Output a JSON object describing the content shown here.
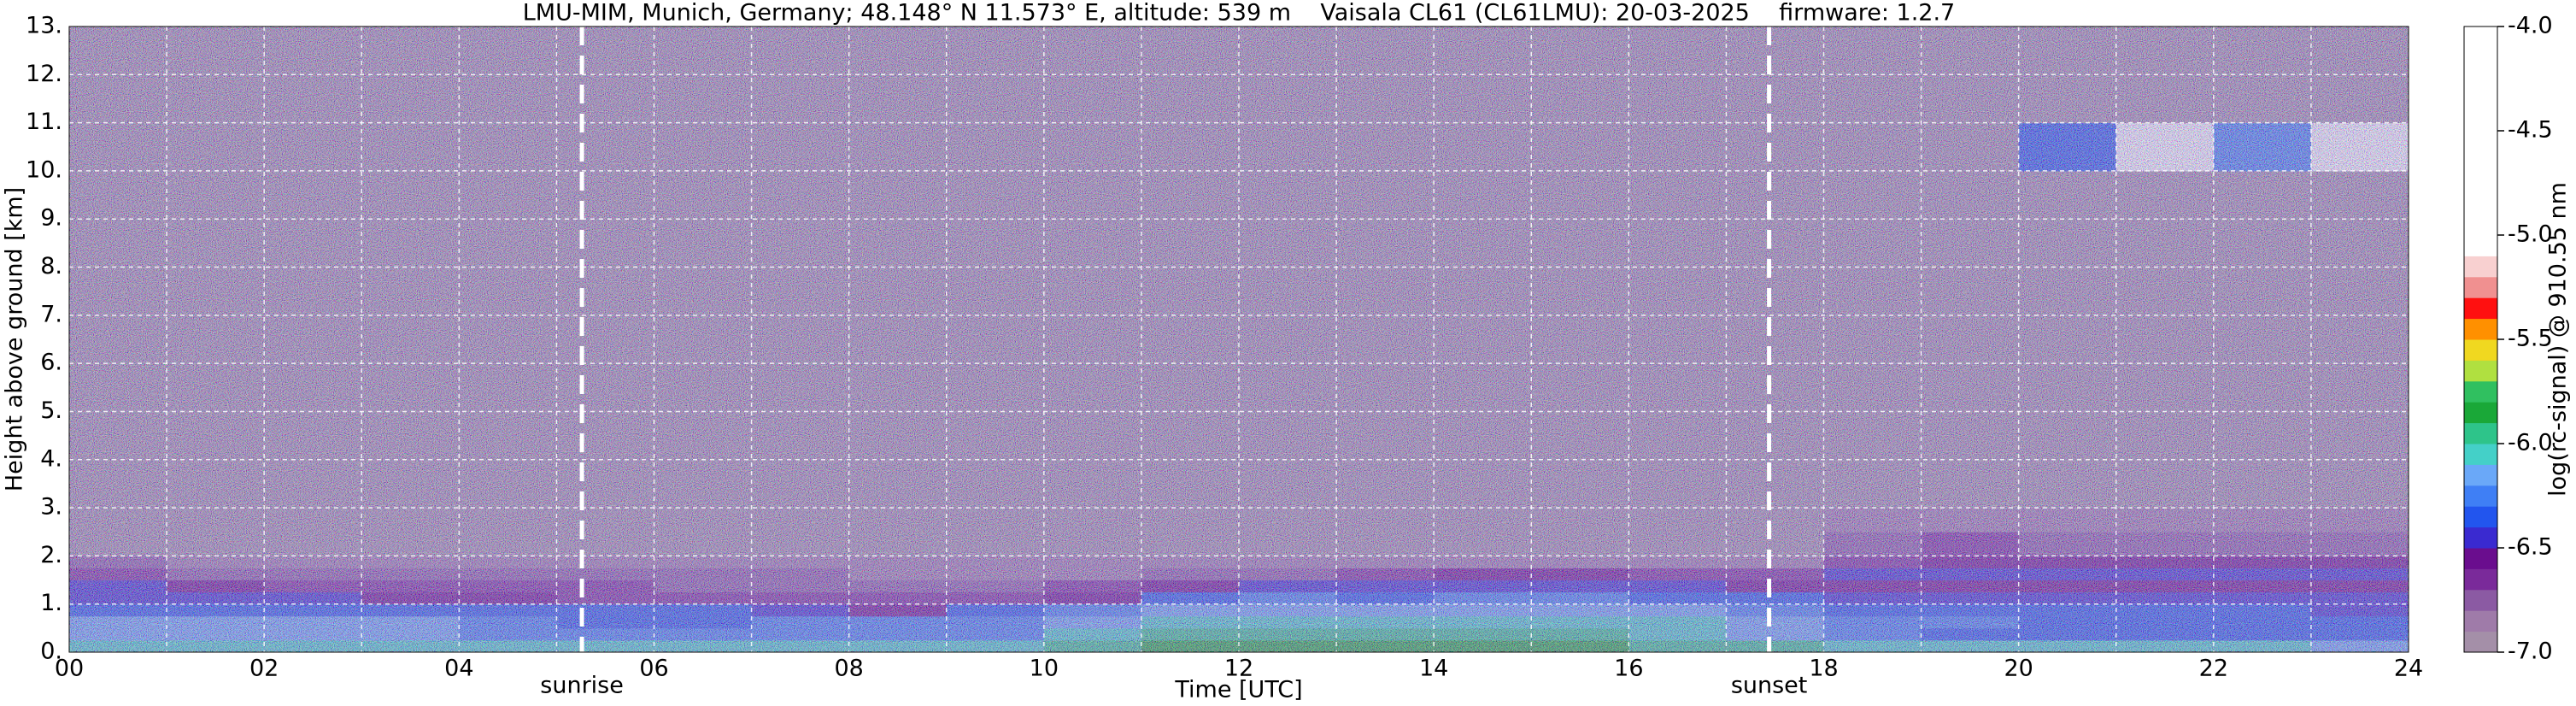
{
  "chart_data": {
    "type": "heatmap",
    "title": "LMU-MIM, Munich, Germany; 48.148° N 11.573° E, altitude: 539 m    Vaisala CL61 (CL61LMU): 20-03-2025    firmware: 1.2.7",
    "xlabel": "Time [UTC]",
    "ylabel": "Height above ground [km]",
    "colorbar_label": "log(rc-signal) @ 910.55 nm",
    "xlim": [
      0,
      24
    ],
    "ylim": [
      0,
      13
    ],
    "xticks": [
      {
        "value": 0,
        "label": "00"
      },
      {
        "value": 2,
        "label": "02"
      },
      {
        "value": 4,
        "label": "04"
      },
      {
        "value": 6,
        "label": "06"
      },
      {
        "value": 8,
        "label": "08"
      },
      {
        "value": 10,
        "label": "10"
      },
      {
        "value": 12,
        "label": "12"
      },
      {
        "value": 14,
        "label": "14"
      },
      {
        "value": 16,
        "label": "16"
      },
      {
        "value": 18,
        "label": "18"
      },
      {
        "value": 20,
        "label": "20"
      },
      {
        "value": 22,
        "label": "22"
      },
      {
        "value": 24,
        "label": "24"
      }
    ],
    "xminorticks": [
      1,
      3,
      5,
      7,
      9,
      11,
      13,
      15,
      17,
      19,
      21,
      23
    ],
    "yticks": [
      {
        "value": 0,
        "label": "0."
      },
      {
        "value": 1,
        "label": "1."
      },
      {
        "value": 2,
        "label": "2."
      },
      {
        "value": 3,
        "label": "3."
      },
      {
        "value": 4,
        "label": "4."
      },
      {
        "value": 5,
        "label": "5."
      },
      {
        "value": 6,
        "label": "6."
      },
      {
        "value": 7,
        "label": "7."
      },
      {
        "value": 8,
        "label": "8."
      },
      {
        "value": 9,
        "label": "9."
      },
      {
        "value": 10,
        "label": "10."
      },
      {
        "value": 11,
        "label": "11."
      },
      {
        "value": 12,
        "label": "12."
      },
      {
        "value": 13,
        "label": "13."
      }
    ],
    "grid": true,
    "annotations": [
      {
        "text": "sunrise",
        "x": 5.26
      },
      {
        "text": "sunset",
        "x": 17.44
      }
    ],
    "clim": [
      -7,
      -4
    ],
    "cticks": [
      {
        "value": -4,
        "label": "-4.0"
      },
      -4.5,
      {
        "value": -5,
        "label": "-5.0"
      },
      -5.5,
      {
        "value": -6,
        "label": "-6.0"
      },
      -6.5,
      {
        "value": -7,
        "label": "-7.0"
      }
    ],
    "colorscale": [
      {
        "value": -7,
        "color": "#a48fa8"
      },
      {
        "value": -6.9,
        "color": "#9f7ba9"
      },
      {
        "value": -6.8,
        "color": "#8b5aa3"
      },
      {
        "value": -6.7,
        "color": "#7a2a9a"
      },
      {
        "value": -6.6,
        "color": "#6a0d8e"
      },
      {
        "value": -6.5,
        "color": "#3a2ad0"
      },
      {
        "value": -6.4,
        "color": "#2255ee"
      },
      {
        "value": -6.3,
        "color": "#3f7ff5"
      },
      {
        "value": -6.2,
        "color": "#6aa8f8"
      },
      {
        "value": -6.1,
        "color": "#44d0c8"
      },
      {
        "value": -6.0,
        "color": "#2ec48a"
      },
      {
        "value": -5.9,
        "color": "#1aa838"
      },
      {
        "value": -5.8,
        "color": "#30c060"
      },
      {
        "value": -5.7,
        "color": "#b0e040"
      },
      {
        "value": -5.6,
        "color": "#f0d820"
      },
      {
        "value": -5.5,
        "color": "#ff9000"
      },
      {
        "value": -5.4,
        "color": "#ff1010"
      },
      {
        "value": -5.3,
        "color": "#f09090"
      },
      {
        "value": -5.2,
        "color": "#f8d0d0"
      },
      {
        "value": -5.1,
        "color": "#ffffff"
      }
    ],
    "x": [
      0,
      1,
      2,
      3,
      4,
      5,
      6,
      7,
      8,
      9,
      10,
      11,
      12,
      13,
      14,
      15,
      16,
      17,
      18,
      19,
      20,
      21,
      22,
      23,
      24
    ],
    "y": [
      0,
      0.25,
      0.5,
      0.75,
      1,
      1.25,
      1.5,
      1.75,
      2,
      2.5,
      3,
      10,
      11,
      13
    ],
    "z": [
      [
        -6.05,
        -6.05,
        -6.05,
        -6.05,
        -6.05,
        -6.1,
        -6.1,
        -6.1,
        -6.1,
        -6.1,
        -5.95,
        -5.9,
        -5.9,
        -5.9,
        -5.9,
        -5.9,
        -5.95,
        -6.0,
        -6.1,
        -6.1,
        -6.05,
        -6.1,
        -6.1,
        -6.15
      ],
      [
        -6.2,
        -6.2,
        -6.2,
        -6.2,
        -6.25,
        -6.3,
        -6.3,
        -6.3,
        -6.3,
        -6.25,
        -6.1,
        -6.0,
        -6.0,
        -5.95,
        -5.95,
        -6.0,
        -6.05,
        -6.15,
        -6.3,
        -6.35,
        -6.35,
        -6.35,
        -6.4,
        -6.4
      ],
      [
        -6.15,
        -6.15,
        -6.2,
        -6.2,
        -6.25,
        -6.35,
        -6.35,
        -6.3,
        -6.3,
        -6.3,
        -6.2,
        -6.1,
        -6.05,
        -6.05,
        -6.05,
        -6.1,
        -6.1,
        -6.2,
        -6.25,
        -6.3,
        -6.35,
        -6.4,
        -6.4,
        -6.4
      ],
      [
        -6.35,
        -6.35,
        -6.35,
        -6.35,
        -6.4,
        -6.4,
        -6.4,
        -6.5,
        -6.6,
        -6.4,
        -6.3,
        -6.2,
        -6.15,
        -6.15,
        -6.15,
        -6.2,
        -6.2,
        -6.3,
        -6.35,
        -6.35,
        -6.4,
        -6.4,
        -6.4,
        -6.45
      ],
      [
        -6.45,
        -6.45,
        -6.5,
        -6.55,
        -6.6,
        -6.65,
        -6.7,
        -6.7,
        -6.7,
        -6.7,
        -6.6,
        -6.35,
        -6.3,
        -6.35,
        -6.3,
        -6.3,
        -6.35,
        -6.4,
        -6.45,
        -6.5,
        -6.5,
        -6.5,
        -6.5,
        -6.5
      ],
      [
        -6.5,
        -6.55,
        -6.7,
        -6.7,
        -6.7,
        -6.7,
        -6.75,
        -6.75,
        -6.75,
        -6.75,
        -6.7,
        -6.6,
        -6.5,
        -6.5,
        -6.45,
        -6.45,
        -6.5,
        -6.55,
        -6.6,
        -6.6,
        -6.6,
        -6.55,
        -6.55,
        -6.55
      ],
      [
        -6.7,
        -6.75,
        -6.75,
        -6.75,
        -6.8,
        -6.8,
        -6.8,
        -6.8,
        -6.85,
        -6.85,
        -6.85,
        -6.8,
        -6.75,
        -6.7,
        -6.6,
        -6.6,
        -6.7,
        -6.7,
        -6.5,
        -6.45,
        -6.5,
        -6.5,
        -6.5,
        -6.5
      ],
      [
        -6.8,
        -6.85,
        -6.85,
        -6.85,
        -6.85,
        -6.85,
        -6.85,
        -6.9,
        -6.9,
        -6.9,
        -6.9,
        -6.9,
        -6.9,
        -6.9,
        -6.85,
        -6.85,
        -6.9,
        -6.9,
        -6.65,
        -6.55,
        -6.6,
        -6.6,
        -6.6,
        -6.6
      ],
      [
        -6.95,
        -6.95,
        -6.95,
        -6.95,
        -6.95,
        -6.95,
        -6.95,
        -6.95,
        -6.95,
        -6.95,
        -6.95,
        -6.95,
        -6.95,
        -6.95,
        -6.95,
        -6.95,
        -6.95,
        -6.95,
        -6.75,
        -6.7,
        -6.75,
        -6.8,
        -6.8,
        -6.8
      ],
      [
        -7,
        -7,
        -7,
        -7,
        -7,
        -7,
        -7,
        -7,
        -7,
        -7,
        -7,
        -7,
        -7,
        -7,
        -7,
        -7,
        -7,
        -7,
        -6.85,
        -6.85,
        -6.9,
        -6.9,
        -6.9,
        -6.9
      ],
      [
        -7,
        -7,
        -7,
        -7,
        -7,
        -7,
        -7,
        -7,
        -7,
        -7,
        -7,
        -7,
        -7,
        -7,
        -7,
        -7,
        -7,
        -7,
        -7,
        -7,
        -7,
        -7,
        -7,
        -7
      ],
      [
        -7,
        -7,
        -7,
        -7,
        -7,
        -7,
        -7,
        -7,
        -7,
        -7,
        -7,
        -7,
        -7,
        -7,
        -7,
        -7,
        -7,
        -7,
        -7,
        -7,
        -6.4,
        -4.6,
        -6.3,
        -4.8
      ],
      [
        -7,
        -7,
        -7,
        -7,
        -7,
        -7,
        -7,
        -7,
        -7,
        -7,
        -7,
        -7,
        -7,
        -7,
        -7,
        -7,
        -7,
        -7,
        -7,
        -7,
        -7,
        -7,
        -7,
        -7
      ]
    ]
  }
}
